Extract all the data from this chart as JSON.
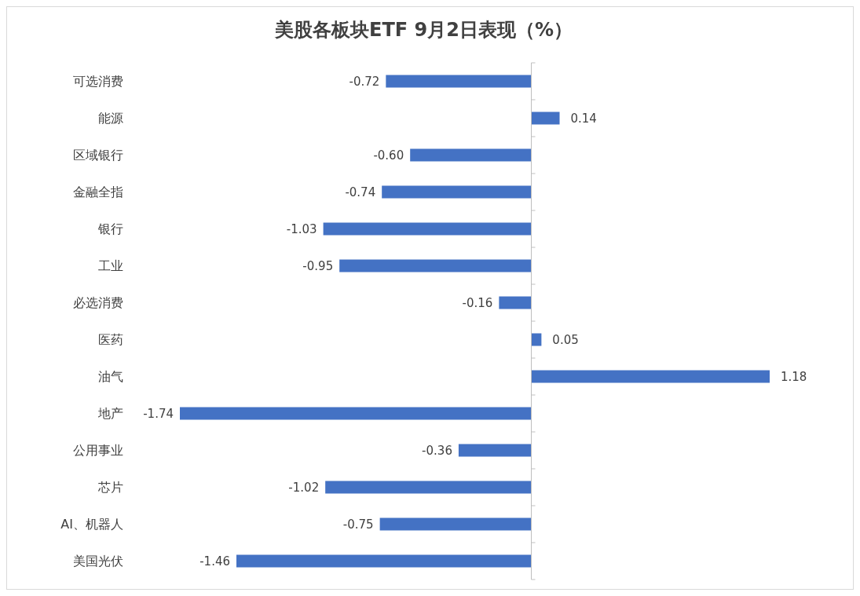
{
  "chart_data": {
    "type": "bar",
    "orientation": "horizontal",
    "title": "美股各板块ETF  9月2日表现（%）",
    "categories": [
      "可选消费",
      "能源",
      "区域银行",
      "金融全指",
      "银行",
      "工业",
      "必选消费",
      "医药",
      "油气",
      "地产",
      "公用事业",
      "芯片",
      "AI、机器人",
      "美国光伏"
    ],
    "values": [
      -0.72,
      0.14,
      -0.6,
      -0.74,
      -1.03,
      -0.95,
      -0.16,
      0.05,
      1.18,
      -1.74,
      -0.36,
      -1.02,
      -0.75,
      -1.46
    ],
    "value_labels": [
      "-0.72",
      "0.14",
      "-0.60",
      "-0.74",
      "-1.03",
      "-0.95",
      "-0.16",
      "0.05",
      "1.18",
      "-1.74",
      "-0.36",
      "-1.02",
      "-0.75",
      "-1.46"
    ],
    "color": "#4472c4"
  }
}
